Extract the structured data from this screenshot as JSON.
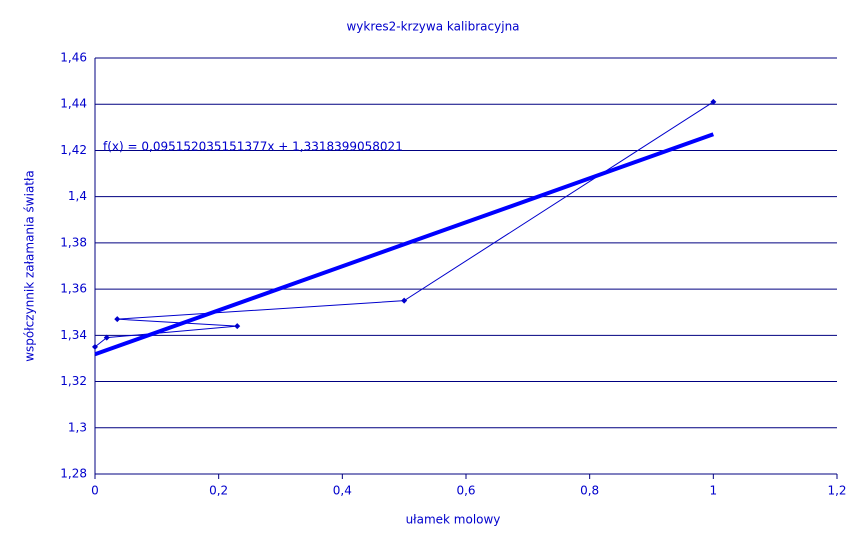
{
  "chart_data": {
    "type": "scatter-line",
    "title": "wykres2-krzywa kalibracyjna",
    "x_label": "ułamek molowy",
    "y_label": "współczynnik załamania światła",
    "annotation": "f(x) = 0,095152035151377x + 1,3318399058021",
    "series": [
      {
        "x": [
          0,
          0.019,
          0.23,
          0.036,
          0.5,
          1
        ],
        "values": [
          1.335,
          1.339,
          1.344,
          1.347,
          1.355,
          1.441
        ],
        "color": "#0000cc",
        "style": "line-markers"
      },
      {
        "x": [
          0,
          1
        ],
        "values": [
          1.3318,
          1.427
        ],
        "color": "#0000ff",
        "style": "trendline"
      }
    ],
    "xlim": [
      0,
      1.2
    ],
    "xticks": [
      0,
      {
        "value": 0.2,
        "label": "0,2"
      },
      {
        "value": 0.4,
        "label": "0,4"
      },
      {
        "value": 0.6,
        "label": "0,6"
      },
      {
        "value": 0.8,
        "label": "0,8"
      },
      1,
      {
        "value": 1.2,
        "label": "1,2"
      }
    ],
    "ylim": [
      1.28,
      1.46
    ],
    "yticks": [
      {
        "value": 1.28,
        "label": "1,28"
      },
      {
        "value": 1.3,
        "label": "1,3"
      },
      {
        "value": 1.32,
        "label": "1,32"
      },
      {
        "value": 1.34,
        "label": "1,34"
      },
      {
        "value": 1.36,
        "label": "1,36"
      },
      {
        "value": 1.38,
        "label": "1,38"
      },
      {
        "value": 1.4,
        "label": "1,4"
      },
      {
        "value": 1.42,
        "label": "1,42"
      },
      {
        "value": 1.44,
        "label": "1,44"
      },
      {
        "value": 1.46,
        "label": "1,46"
      }
    ],
    "grid": true,
    "grid_color": "#000080"
  }
}
